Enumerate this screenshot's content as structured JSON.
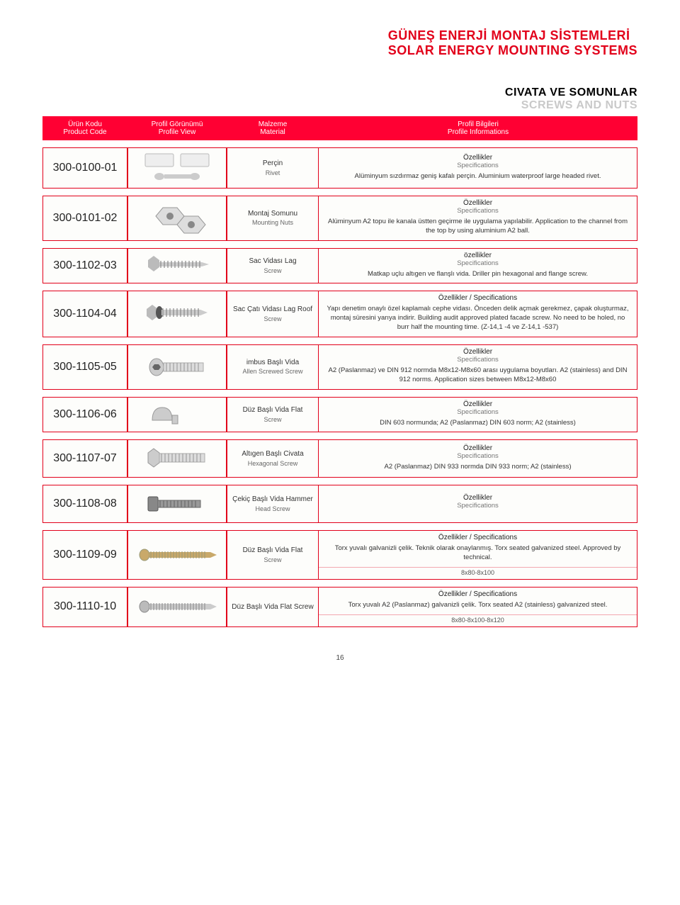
{
  "header": {
    "line1": "GÜNEŞ ENERJİ MONTAJ SİSTEMLERİ",
    "line2": "SOLAR ENERGY MOUNTING SYSTEMS"
  },
  "section": {
    "line1": "CIVATA VE SOMUNLAR",
    "line2": "SCREWS AND NUTS"
  },
  "columns": {
    "c1a": "Ürün Kodu",
    "c1b": "Product Code",
    "c2a": "Profil Görünümü",
    "c2b": "Profile View",
    "c3a": "Malzeme",
    "c3b": "Material",
    "c4a": "Profil Bilgileri",
    "c4b": "Profile Informations"
  },
  "spec_labels": {
    "h1": "Özellikler",
    "h2": "Specifications",
    "h1_lower": "özellikler",
    "h12": "Özellikler / Specifications"
  },
  "rows": [
    {
      "code": "300-0100-01",
      "mat1": "Perçin",
      "mat2": "Rivet",
      "spec_head_type": "split",
      "spec": "Alüminyum sızdırmaz geniş kafalı perçin. Aluminium waterproof large headed rivet.",
      "extra": ""
    },
    {
      "code": "300-0101-02",
      "mat1": "Montaj Somunu",
      "mat2": "Mounting Nuts",
      "spec_head_type": "split",
      "spec": "Alüminyum A2 topu ile kanala üstten geçirme ile uygulama yapılabilir. Application to the channel from the top by using aluminium A2 ball.",
      "extra": ""
    },
    {
      "code": "300-1102-03",
      "mat1": "Sac Vidası Lag",
      "mat2": "Screw",
      "spec_head_type": "split_lower",
      "spec": "Matkap uçlu altıgen ve flanşlı vida. Driller pin hexagonal and flange screw.",
      "extra": ""
    },
    {
      "code": "300-1104-04",
      "mat1": "Sac Çatı Vidası Lag Roof",
      "mat2": "Screw",
      "spec_head_type": "combined",
      "spec": "Yapı denetim onaylı özel kaplamalı cephe vidası. Önceden delik açmak gerekmez, çapak oluşturmaz, montaj süresini yarıya indirir. Building audit approved plated facade screw. No need to be holed, no burr half the mounting time. (Z-14,1 -4 ve Z-14,1 -537)",
      "extra": ""
    },
    {
      "code": "300-1105-05",
      "mat1": "imbus Başlı Vida",
      "mat2": "Allen Screwed Screw",
      "spec_head_type": "split",
      "spec": "A2 (Paslanmaz) ve DIN 912 normda M8x12-M8x60 arası uygulama boyutları. A2 (stainless) and DIN 912 norms. Application sizes between M8x12-M8x60",
      "extra": ""
    },
    {
      "code": "300-1106-06",
      "mat1": "Düz Başlı Vida Flat",
      "mat2": "Screw",
      "spec_head_type": "split",
      "spec": "DIN 603 normunda; A2 (Paslanmaz) DIN 603 norm; A2 (stainless)",
      "extra": ""
    },
    {
      "code": "300-1107-07",
      "mat1": "Altıgen Başlı Civata",
      "mat2": "Hexagonal Screw",
      "spec_head_type": "split",
      "spec": "A2 (Paslanmaz) DIN 933 normda DIN 933 norm; A2 (stainless)",
      "extra": ""
    },
    {
      "code": "300-1108-08",
      "mat1": "Çekiç Başlı Vida Hammer",
      "mat2": "Head Screw",
      "spec_head_type": "split",
      "spec": "",
      "extra": ""
    },
    {
      "code": "300-1109-09",
      "mat1": "Düz Başlı Vida Flat",
      "mat2": "Screw",
      "spec_head_type": "combined",
      "spec": "Torx yuvalı galvanizli çelik. Teknik olarak onaylanmış. Torx seated galvanized steel. Approved by technical.",
      "extra": "8x80-8x100"
    },
    {
      "code": "300-1110-10",
      "mat1": "Düz Başlı Vida Flat Screw",
      "mat2": "",
      "spec_head_type": "combined",
      "spec": "Torx yuvalı A2 (Paslanmaz) galvanizli çelik. Torx seated A2 (stainless) galvanized steel.",
      "extra": "8x80-8x100-8x120"
    }
  ],
  "page_number": "16",
  "colors": {
    "accent": "#e2001a",
    "header_bg": "#ff0033"
  }
}
